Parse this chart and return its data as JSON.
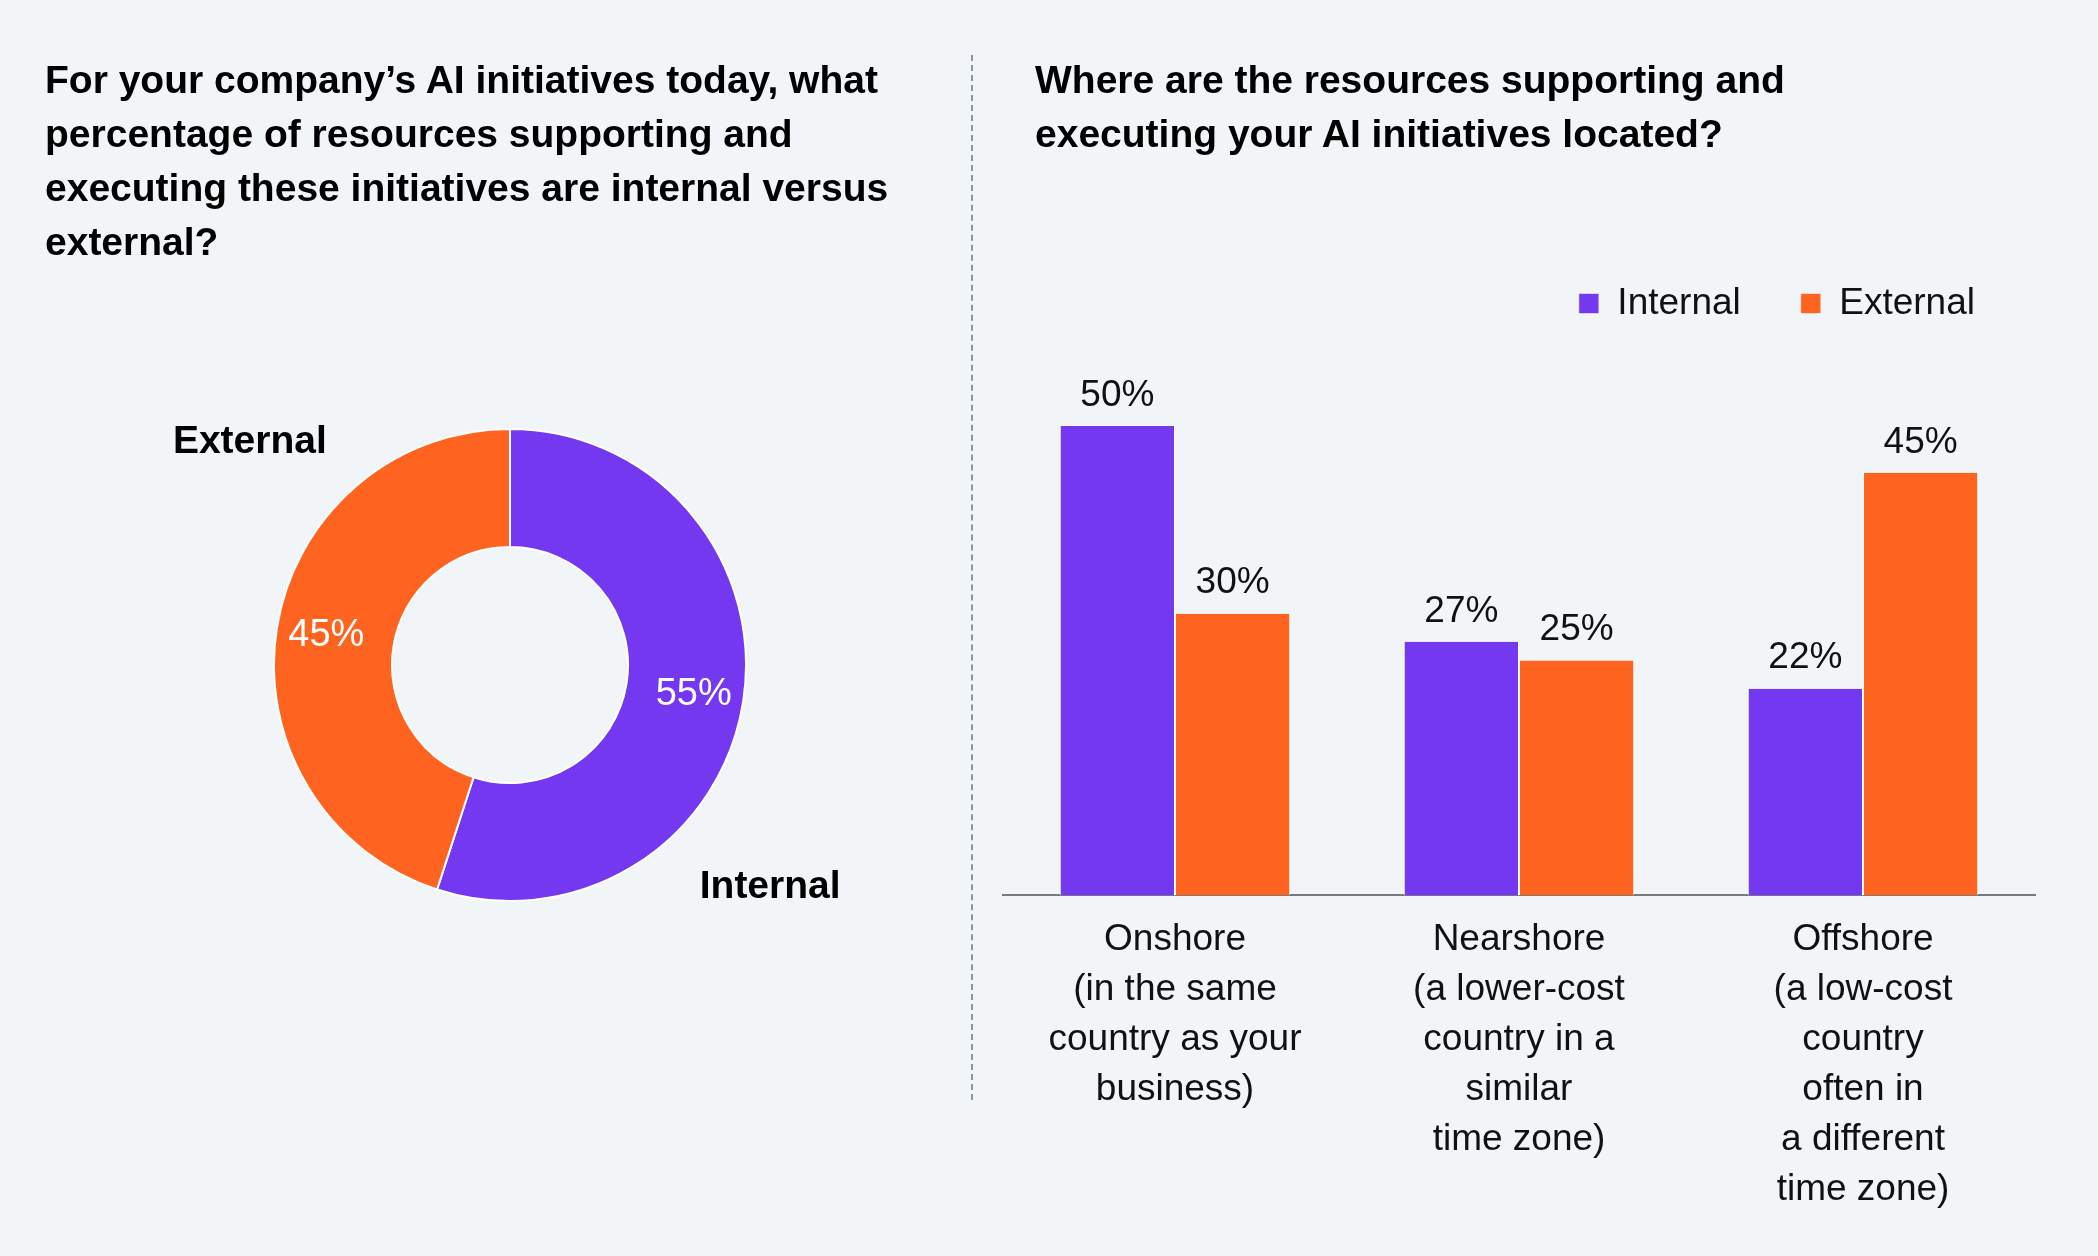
{
  "chart_data": [
    {
      "type": "donut",
      "title": "For your company’s AI initiatives today, what percentage of resources supporting and executing these initiatives are internal versus external?",
      "categories": [
        "Internal",
        "External"
      ],
      "values": [
        55,
        45
      ],
      "colors": [
        "#7438f0",
        "#ff6320"
      ],
      "value_labels": [
        "55%",
        "45%"
      ],
      "legend": false
    },
    {
      "type": "bar",
      "title": "Where are the resources supporting and executing your AI initiatives located?",
      "categories": [
        "Onshore\n(in the same\ncountry as your\nbusiness)",
        "Nearshore\n(a lower-cost\ncountry in a\nsimilar\ntime zone)",
        "Offshore\n(a low-cost\ncountry\noften in\na different\ntime zone)"
      ],
      "series": [
        {
          "name": "Internal",
          "color": "#7438f0",
          "values": [
            50,
            27,
            22
          ],
          "value_labels": [
            "50%",
            "27%",
            "22%"
          ]
        },
        {
          "name": "External",
          "color": "#ff6320",
          "values": [
            30,
            25,
            45
          ],
          "value_labels": [
            "30%",
            "25%",
            "45%"
          ]
        }
      ],
      "legend": "top right",
      "grid": false
    }
  ]
}
